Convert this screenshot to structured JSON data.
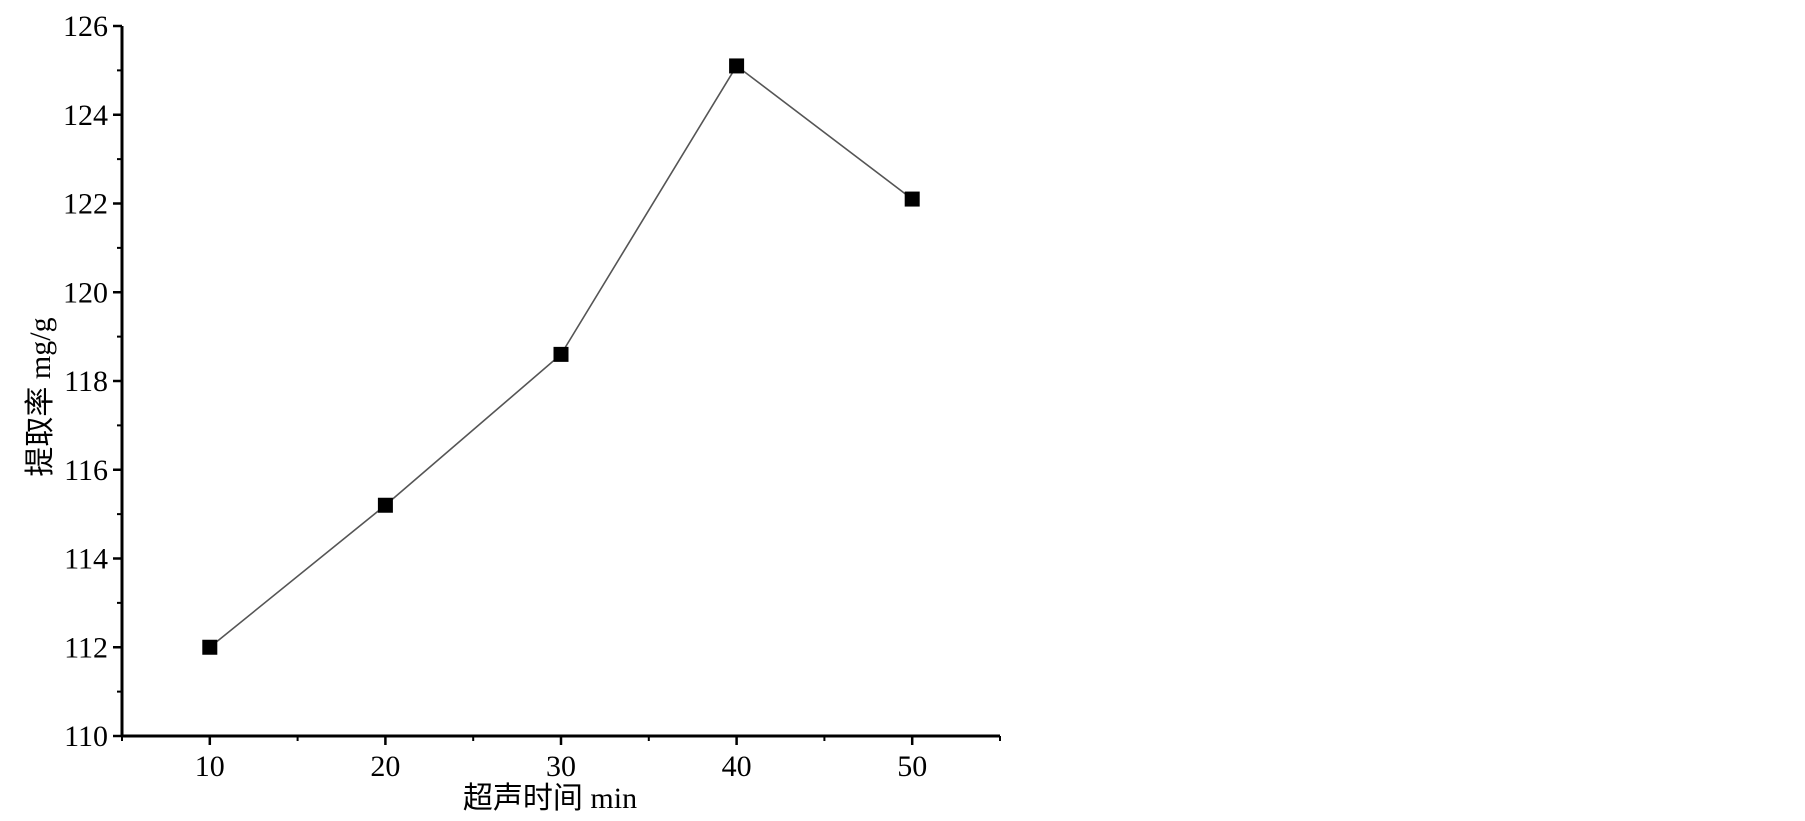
{
  "chart_data": {
    "type": "line",
    "title": "",
    "xlabel": "超声时间 min",
    "ylabel": "提取率  mg/g",
    "x": [
      10,
      20,
      30,
      40,
      50
    ],
    "series": [
      {
        "values": [
          112.0,
          115.2,
          118.6,
          125.1,
          122.1
        ]
      }
    ],
    "xlim": [
      5,
      55
    ],
    "ylim": [
      110,
      126
    ],
    "xticks": [
      10,
      20,
      30,
      40,
      50
    ],
    "yticks": [
      110,
      112,
      114,
      116,
      118,
      120,
      122,
      124,
      126
    ],
    "grid": false,
    "legend": "none",
    "marker": "square",
    "colors": {
      "line": "#555555",
      "marker": "#000000",
      "axis": "#000000"
    }
  }
}
